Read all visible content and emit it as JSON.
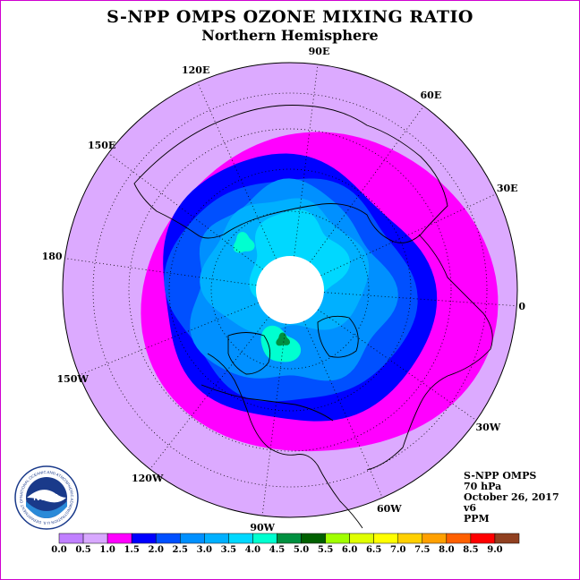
{
  "title": "S-NPP OMPS OZONE MIXING RATIO",
  "subtitle": "Northern Hemisphere",
  "longitude_labels": [
    "90E",
    "60E",
    "30E",
    "0",
    "30W",
    "60W",
    "90W",
    "120W",
    "150W",
    "180",
    "150E",
    "120E"
  ],
  "info": {
    "instrument": "S-NPP OMPS",
    "level": "70 hPa",
    "date": "October 26, 2017",
    "version": "v6",
    "units": "PPM"
  },
  "legend": {
    "ticks": [
      "0.0",
      "0.5",
      "1.0",
      "1.5",
      "2.0",
      "2.5",
      "3.0",
      "3.5",
      "4.0",
      "4.5",
      "5.0",
      "5.5",
      "6.0",
      "6.5",
      "7.0",
      "7.5",
      "8.0",
      "8.5",
      "9.0"
    ],
    "colors": [
      "#c080ff",
      "#d8a8ff",
      "#ff00ff",
      "#0000ff",
      "#0050ff",
      "#0090ff",
      "#00b0ff",
      "#00d8ff",
      "#00ffd0",
      "#009040",
      "#006000",
      "#a0ff00",
      "#e0ff00",
      "#ffff00",
      "#ffd000",
      "#ffa000",
      "#ff6000",
      "#ff0000",
      "#904020"
    ]
  },
  "logo": {
    "text": "NOAA",
    "ring_text": "NATIONAL OCEANIC AND ATMOSPHERIC ADMINISTRATION U.S. DEPARTMENT OF COMMERCE"
  },
  "map_colors": {
    "outer": "#dcaaff",
    "band_magenta": "#ff00ff",
    "band_blue": "#0000ff",
    "band_mid": "#0050ff",
    "band_light": "#0090ff",
    "band_cyan": "#00b0ff",
    "band_aqua": "#00d8ff",
    "spot_teal": "#00ffd0",
    "spot_green": "#009040",
    "nodata": "#ffffff"
  }
}
